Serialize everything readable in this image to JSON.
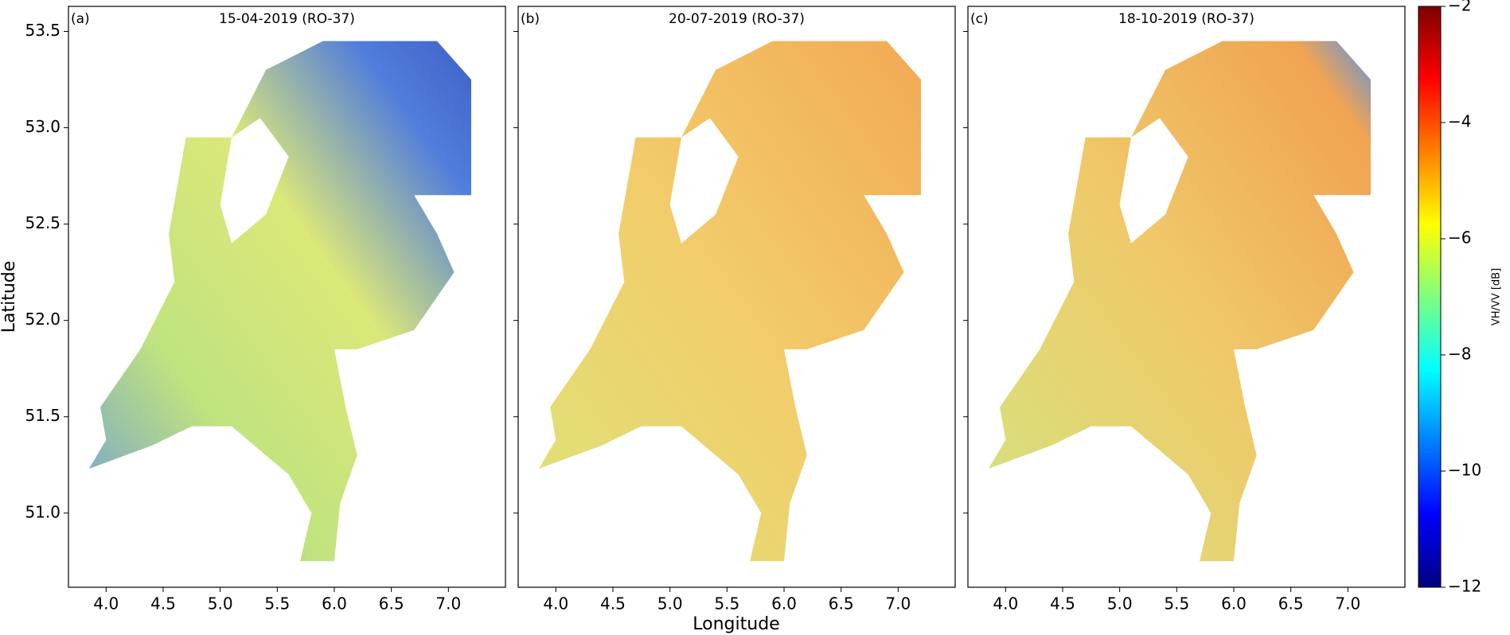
{
  "panels": [
    {
      "label": "(a)",
      "title": "15-04-2019 (RO-37)"
    },
    {
      "label": "(b)",
      "title": "20-07-2019 (RO-37)"
    },
    {
      "label": "(c)",
      "title": "18-10-2019 (RO-37)"
    }
  ],
  "xlim": [
    3.67,
    7.5
  ],
  "ylim": [
    50.615,
    53.63
  ],
  "xticks": [
    {
      "value": 4,
      "label": "4.0"
    },
    {
      "value": 4.5,
      "label": "4.5"
    },
    {
      "value": 5,
      "label": "5.0"
    },
    {
      "value": 5.5,
      "label": "5.5"
    },
    {
      "value": 6,
      "label": "6.0"
    },
    {
      "value": 6.5,
      "label": "6.5"
    },
    {
      "value": 7,
      "label": "7.0"
    }
  ],
  "yticks": [
    {
      "value": 51,
      "label": "51.0"
    },
    {
      "value": 51.5,
      "label": "51.5"
    },
    {
      "value": 52,
      "label": "52.0"
    },
    {
      "value": 52.5,
      "label": "52.5"
    },
    {
      "value": 53,
      "label": "53.0"
    },
    {
      "value": 53.5,
      "label": "53.5"
    }
  ],
  "xlabel": "Longitude",
  "ylabel": "Latitude",
  "colorbar": {
    "label": "VH/VV [dB]",
    "lim": [
      -12,
      -2
    ],
    "ticks": [
      {
        "value": -12,
        "label": "−12"
      },
      {
        "value": -10,
        "label": "−10"
      },
      {
        "value": -8,
        "label": "−8"
      },
      {
        "value": -6,
        "label": "−6"
      },
      {
        "value": -4,
        "label": "−4"
      },
      {
        "value": -2,
        "label": "−2"
      }
    ]
  }
}
